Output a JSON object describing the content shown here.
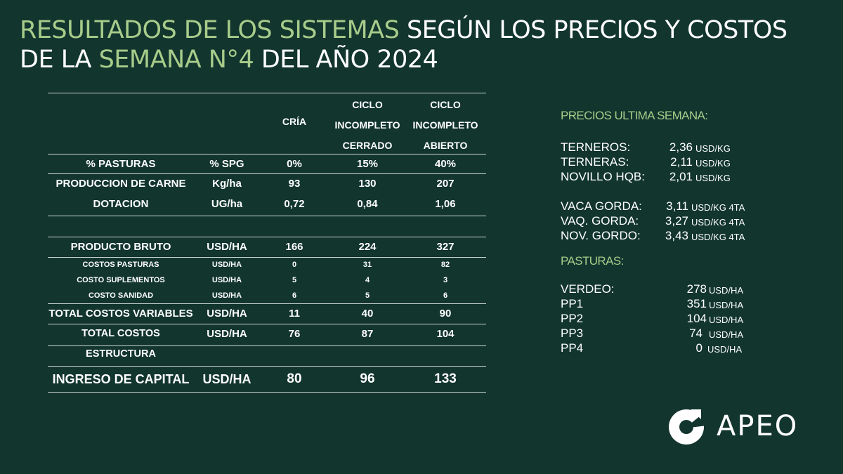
{
  "title": {
    "part1": "RESULTADOS DE LOS SISTEMAS",
    "part2": " SEGÚN LOS PRECIOS Y COSTOS",
    "part3": "DE LA ",
    "part4": "SEMANA N°4",
    "part5": " DEL AÑO 2024"
  },
  "table": {
    "headers": {
      "cria": "CRÍA",
      "ciclo_cerrado": [
        "CICLO",
        "INCOMPLETO",
        "CERRADO"
      ],
      "ciclo_abierto": [
        "CICLO",
        "INCOMPLETO",
        "ABIERTO"
      ]
    },
    "rows": [
      {
        "label": "% PASTURAS",
        "unit": "% SPG",
        "cria": "0%",
        "cerrado": "15%",
        "abierto": "40%"
      },
      {
        "label": "PRODUCCION DE CARNE",
        "unit": "Kg/ha",
        "cria": "93",
        "cerrado": "130",
        "abierto": "207"
      },
      {
        "label": "DOTACION",
        "unit": "UG/ha",
        "cria": "0,72",
        "cerrado": "0,84",
        "abierto": "1,06"
      },
      {
        "label": "PRODUCTO BRUTO",
        "unit": "USD/HA",
        "cria": "166",
        "cerrado": "224",
        "abierto": "327"
      },
      {
        "label": "COSTOS PASTURAS",
        "unit": "USD/HA",
        "cria": "0",
        "cerrado": "31",
        "abierto": "82"
      },
      {
        "label": "COSTO SUPLEMENTOS",
        "unit": "USD/HA",
        "cria": "5",
        "cerrado": "4",
        "abierto": "3"
      },
      {
        "label": "COSTO SANIDAD",
        "unit": "USD/HA",
        "cria": "6",
        "cerrado": "5",
        "abierto": "6"
      },
      {
        "label": "TOTAL COSTOS VARIABLES",
        "unit": "USD/HA",
        "cria": "11",
        "cerrado": "40",
        "abierto": "90"
      },
      {
        "label": "TOTAL COSTOS ESTRUCTURA",
        "unit": "USD/HA",
        "cria": "76",
        "cerrado": "87",
        "abierto": "104"
      },
      {
        "label": "INGRESO DE CAPITAL",
        "unit": "USD/HA",
        "cria": "80",
        "cerrado": "96",
        "abierto": "133"
      }
    ]
  },
  "prices": {
    "heading": "PRECIOS ULTIMA SEMANA:",
    "items": [
      {
        "label": "TERNEROS:",
        "value": "2,36",
        "unit": "USD/KG"
      },
      {
        "label": "TERNERAS:",
        "value": "2,11",
        "unit": "USD/KG"
      },
      {
        "label": "NOVILLO HQB:",
        "value": "2,01",
        "unit": "USD/KG"
      },
      {
        "label": "VACA GORDA:",
        "value": "3,11",
        "unit": "USD/KG 4TA"
      },
      {
        "label": "VAQ. GORDA:",
        "value": "3,27",
        "unit": "USD/KG 4TA"
      },
      {
        "label": "NOV. GORDO:",
        "value": "3,43",
        "unit": "USD/KG 4TA"
      }
    ]
  },
  "pastures": {
    "heading": "PASTURAS:",
    "items": [
      {
        "label": "VERDEO:",
        "value": "278",
        "unit": "USD/HA"
      },
      {
        "label": "PP1",
        "value": "351",
        "unit": "USD/HA"
      },
      {
        "label": "PP2",
        "value": "104",
        "unit": "USD/HA"
      },
      {
        "label": "PP3",
        "value": "74",
        "unit": "USD/HA"
      },
      {
        "label": "PP4",
        "value": "0",
        "unit": "USD/HA"
      }
    ]
  },
  "logo": {
    "text": "APEO",
    "icon": "apeo-logo-icon"
  },
  "colors": {
    "background": "#12352e",
    "accent": "#a8cc8a",
    "text": "#ffffff"
  }
}
